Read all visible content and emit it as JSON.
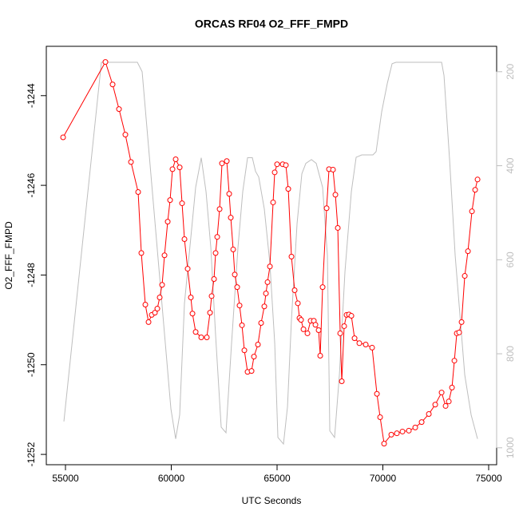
{
  "chart_data": {
    "type": "line",
    "title": "ORCAS RF04 O2_FFF_FMPD",
    "x_label": "UTC Seconds",
    "y_label": "O2_FFF_FMPD",
    "xlim": [
      54094,
      75377
    ],
    "xticks": [
      55000,
      60000,
      65000,
      70000,
      75000
    ],
    "ylim": [
      -1252.23,
      -1242.9
    ],
    "yticks": [
      -1252,
      -1250,
      -1248,
      -1246,
      -1244
    ],
    "y2lim": [
      1036,
      146
    ],
    "y2ticks": [
      200,
      400,
      600,
      800,
      1000
    ],
    "series": [
      {
        "color": "#bebebe",
        "axis": "y2",
        "marker": "none",
        "x": [
          54925,
          56698,
          58397,
          58623,
          59982,
          60208,
          60397,
          60623,
          61152,
          61416,
          61642,
          61869,
          62095,
          62359,
          62586,
          62850,
          63152,
          63378,
          63605,
          63831,
          63982,
          64133,
          64397,
          64661,
          64888,
          65039,
          65303,
          65492,
          65680,
          65945,
          66171,
          66360,
          66624,
          66850,
          67152,
          67379,
          67492,
          67718,
          67945,
          68209,
          68511,
          68737,
          69002,
          69530,
          69681,
          69945,
          70209,
          70436,
          70624,
          72776,
          72889,
          73153,
          73417,
          73870,
          74172,
          74474
        ],
        "values": [
          944,
          180,
          180,
          200,
          917,
          981,
          930,
          693,
          446,
          383,
          455,
          574,
          761,
          956,
          968,
          777,
          574,
          455,
          383,
          383,
          412,
          424,
          492,
          608,
          777,
          978,
          992,
          913,
          727,
          523,
          417,
          395,
          387,
          395,
          446,
          591,
          964,
          978,
          845,
          625,
          455,
          382,
          377,
          377,
          370,
          285,
          225,
          183,
          180,
          180,
          208,
          387,
          591,
          845,
          930,
          981
        ]
      },
      {
        "color": "#ff0000",
        "axis": "y",
        "marker": "circle",
        "x": [
          54887,
          56887,
          57227,
          57529,
          57830,
          58095,
          58434,
          58585,
          58774,
          58925,
          59076,
          59227,
          59340,
          59453,
          59567,
          59680,
          59831,
          59944,
          60057,
          60208,
          60397,
          60510,
          60623,
          60774,
          60925,
          61001,
          61152,
          61416,
          61680,
          61831,
          61906,
          62020,
          62095,
          62171,
          62284,
          62397,
          62623,
          62737,
          62812,
          62925,
          63001,
          63114,
          63227,
          63341,
          63454,
          63605,
          63793,
          63907,
          64095,
          64246,
          64397,
          64473,
          64548,
          64661,
          64812,
          64888,
          65001,
          65265,
          65416,
          65529,
          65680,
          65831,
          65982,
          66058,
          66133,
          66247,
          66435,
          66586,
          66737,
          66813,
          66964,
          67039,
          67152,
          67341,
          67454,
          67643,
          67756,
          67869,
          67983,
          68058,
          68171,
          68284,
          68398,
          68511,
          68662,
          68888,
          69190,
          69492,
          69719,
          69870,
          70058,
          70398,
          70662,
          70926,
          71228,
          71530,
          71832,
          72172,
          72474,
          72776,
          72964,
          73115,
          73266,
          73380,
          73493,
          73606,
          73719,
          73870,
          74021,
          74210,
          74361,
          74474
        ],
        "values": [
          -1244.93,
          -1243.25,
          -1243.75,
          -1244.3,
          -1244.87,
          -1245.48,
          -1246.15,
          -1247.51,
          -1248.66,
          -1249.05,
          -1248.89,
          -1248.84,
          -1248.75,
          -1248.5,
          -1248.22,
          -1247.56,
          -1246.81,
          -1246.33,
          -1245.64,
          -1245.42,
          -1245.6,
          -1246.4,
          -1247.2,
          -1247.86,
          -1248.5,
          -1248.86,
          -1249.27,
          -1249.39,
          -1249.39,
          -1248.84,
          -1248.47,
          -1248.09,
          -1247.51,
          -1247.15,
          -1246.53,
          -1245.51,
          -1245.46,
          -1246.19,
          -1246.72,
          -1247.43,
          -1247.99,
          -1248.27,
          -1248.68,
          -1249.12,
          -1249.68,
          -1250.16,
          -1250.14,
          -1249.82,
          -1249.55,
          -1249.07,
          -1248.7,
          -1248.41,
          -1248.16,
          -1247.81,
          -1246.38,
          -1245.71,
          -1245.53,
          -1245.53,
          -1245.55,
          -1246.08,
          -1247.59,
          -1248.34,
          -1248.63,
          -1248.96,
          -1249.0,
          -1249.21,
          -1249.3,
          -1249.02,
          -1249.02,
          -1249.11,
          -1249.23,
          -1249.8,
          -1248.27,
          -1246.51,
          -1245.64,
          -1245.65,
          -1246.21,
          -1246.95,
          -1249.3,
          -1250.37,
          -1249.14,
          -1248.89,
          -1248.88,
          -1248.91,
          -1249.41,
          -1249.52,
          -1249.55,
          -1249.62,
          -1250.65,
          -1251.17,
          -1251.76,
          -1251.56,
          -1251.53,
          -1251.49,
          -1251.47,
          -1251.4,
          -1251.28,
          -1251.1,
          -1250.89,
          -1250.62,
          -1250.92,
          -1250.82,
          -1250.51,
          -1249.91,
          -1249.3,
          -1249.28,
          -1249.05,
          -1248.02,
          -1247.47,
          -1246.58,
          -1246.1,
          -1245.87
        ]
      }
    ]
  }
}
